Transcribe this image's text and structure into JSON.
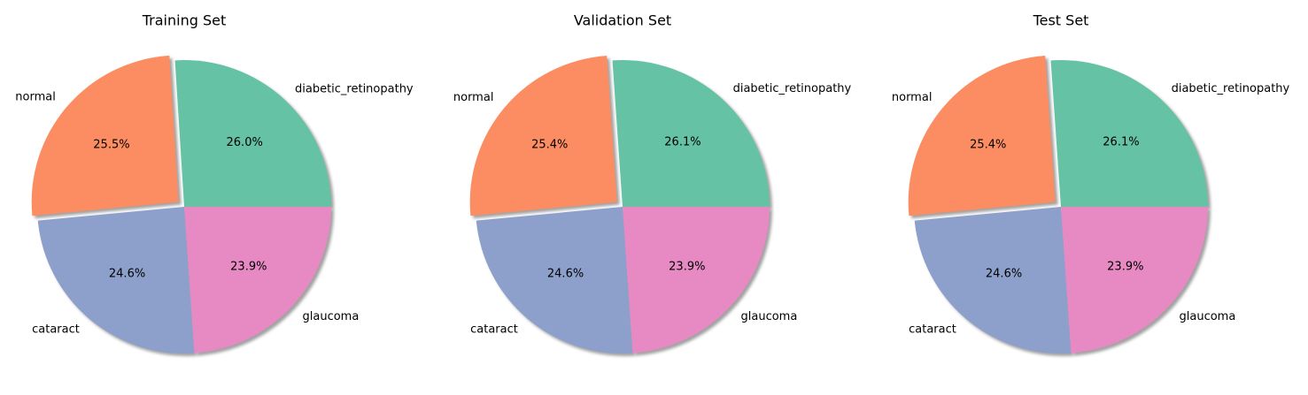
{
  "chart_data": [
    {
      "type": "pie",
      "title": "Training Set",
      "categories": [
        "diabetic_retinopathy",
        "normal",
        "cataract",
        "glaucoma"
      ],
      "values": [
        26.0,
        25.5,
        24.6,
        23.9
      ],
      "value_labels": [
        "26.0%",
        "25.5%",
        "24.6%",
        "23.9%"
      ],
      "colors": [
        "#66c2a5",
        "#fc8d62",
        "#8da0cb",
        "#e78ac3"
      ],
      "exploded": "normal",
      "shadow": true
    },
    {
      "type": "pie",
      "title": "Validation Set",
      "categories": [
        "diabetic_retinopathy",
        "normal",
        "cataract",
        "glaucoma"
      ],
      "values": [
        26.1,
        25.4,
        24.6,
        23.9
      ],
      "value_labels": [
        "26.1%",
        "25.4%",
        "24.6%",
        "23.9%"
      ],
      "colors": [
        "#66c2a5",
        "#fc8d62",
        "#8da0cb",
        "#e78ac3"
      ],
      "exploded": "normal",
      "shadow": true
    },
    {
      "type": "pie",
      "title": "Test Set",
      "categories": [
        "diabetic_retinopathy",
        "normal",
        "cataract",
        "glaucoma"
      ],
      "values": [
        26.1,
        25.4,
        24.6,
        23.9
      ],
      "value_labels": [
        "26.1%",
        "25.4%",
        "24.6%",
        "23.9%"
      ],
      "colors": [
        "#66c2a5",
        "#fc8d62",
        "#8da0cb",
        "#e78ac3"
      ],
      "exploded": "normal",
      "shadow": true
    }
  ]
}
